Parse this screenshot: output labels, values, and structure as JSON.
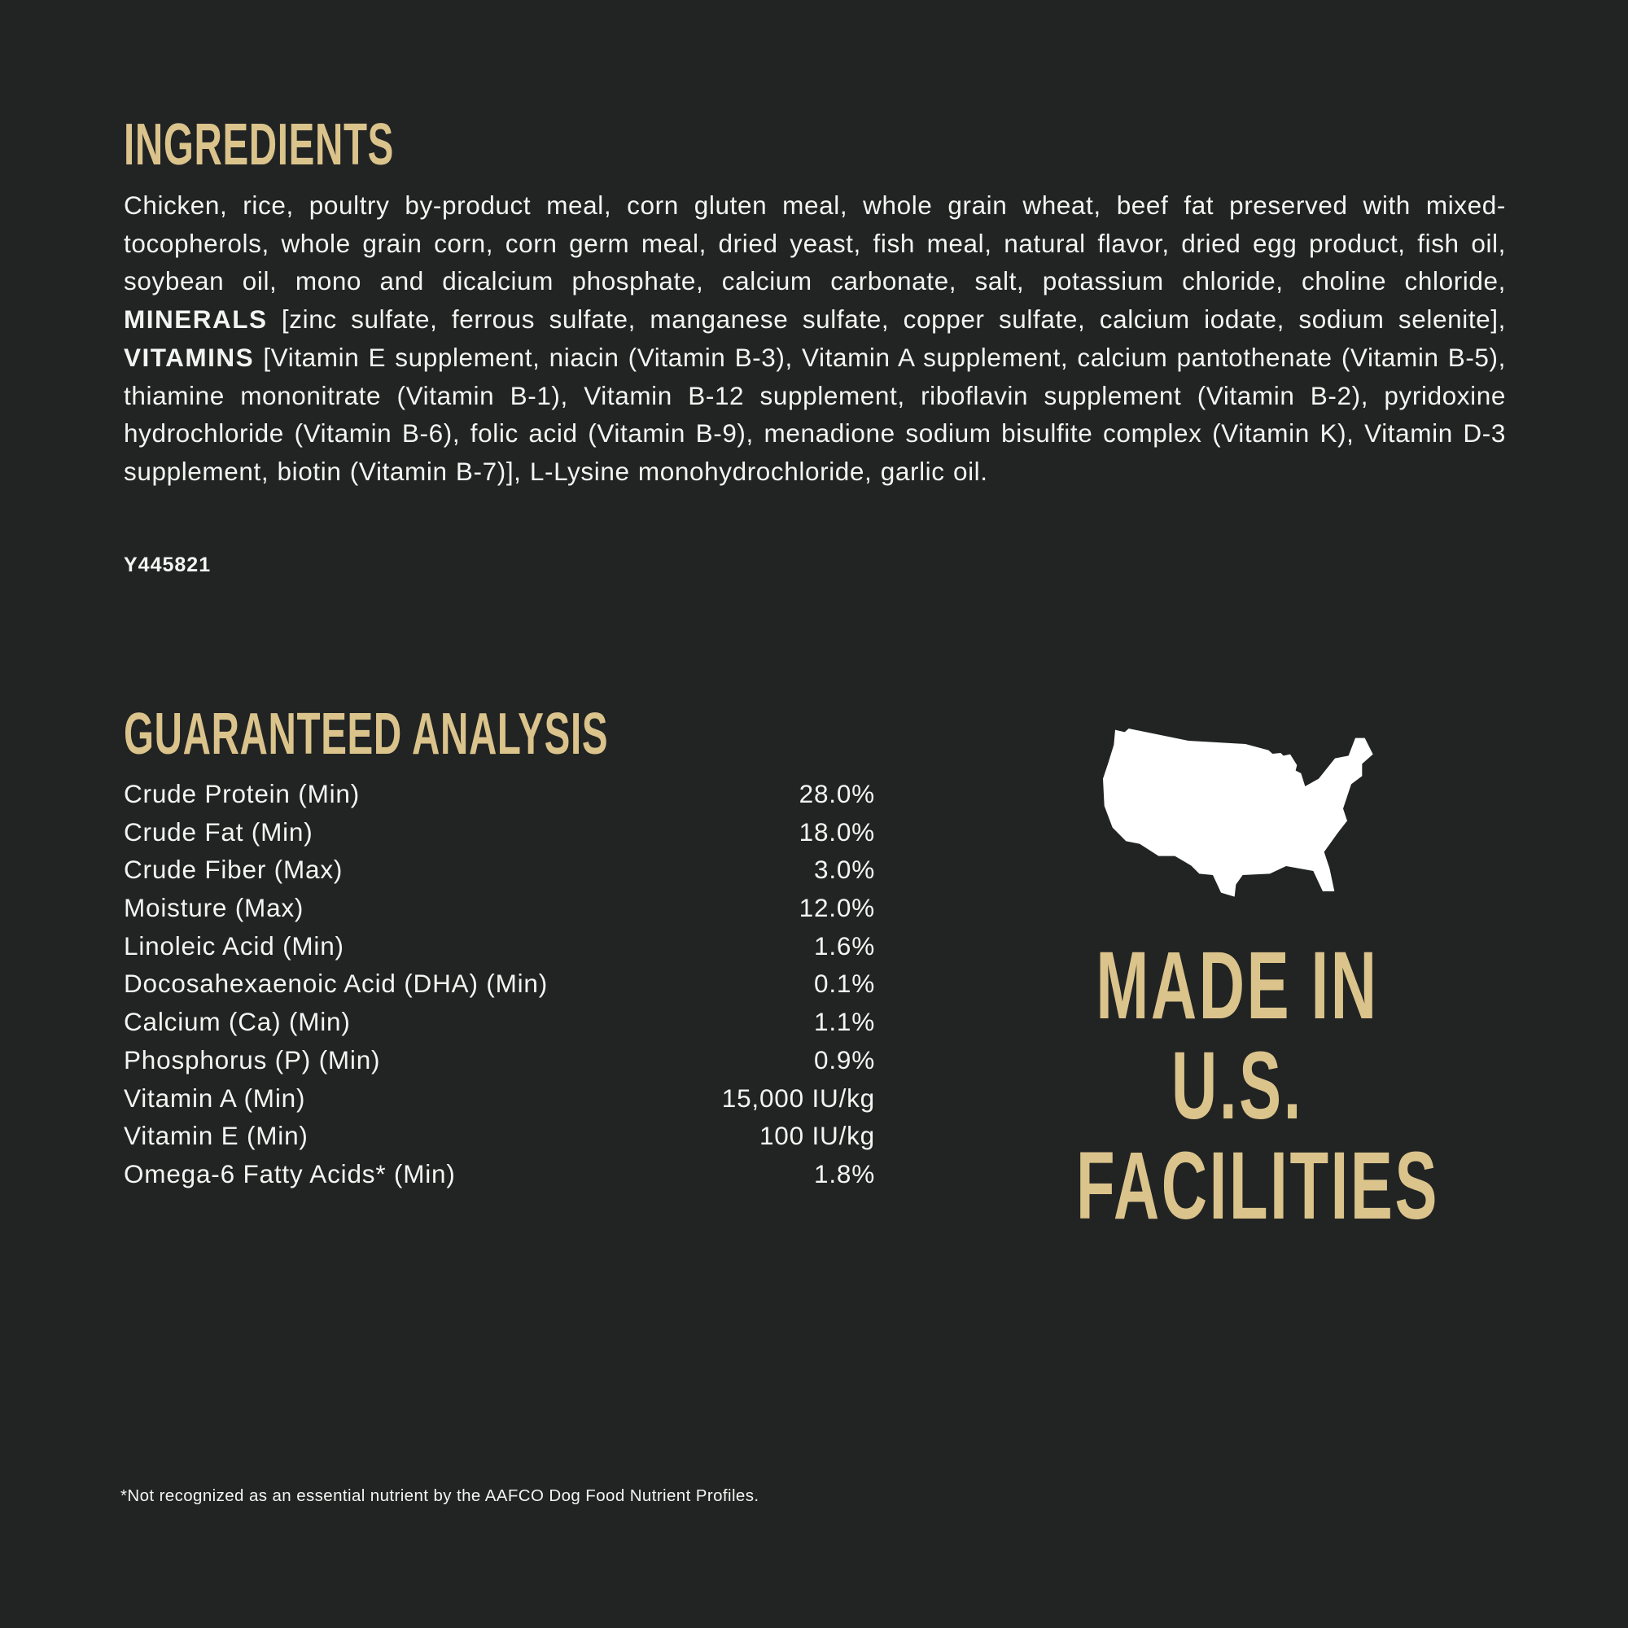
{
  "colors": {
    "background": "#212423",
    "accent_gold": "#dbc38c",
    "text": "#f4f4f2"
  },
  "ingredients": {
    "title": "INGREDIENTS",
    "segments": [
      {
        "text": "Chicken, rice, poultry by-product meal, corn gluten meal, whole grain wheat, beef fat preserved with mixed-tocopherols, whole grain corn, corn germ meal, dried yeast, fish meal, natural flavor, dried egg product, fish oil, soybean oil, mono and dicalcium phosphate, calcium carbonate, salt, potassium chloride, choline chloride, "
      },
      {
        "text": "MINERALS",
        "bold": true
      },
      {
        "text": " [zinc sulfate, ferrous sulfate, manganese sulfate, copper sulfate, calcium iodate, sodium selenite], "
      },
      {
        "text": "VITAMINS",
        "bold": true
      },
      {
        "text": " [Vitamin E supplement, niacin (Vitamin B-3), Vitamin A supplement, calcium pantothenate (Vitamin B-5), thiamine mononitrate (Vitamin B-1), Vitamin B-12 supplement, riboflavin supplement (Vitamin B-2), pyridoxine hydrochloride (Vitamin B-6), folic acid (Vitamin B-9), menadione sodium bisulfite complex (Vitamin K), Vitamin D-3 supplement, biotin (Vitamin B-7)], L-Lysine monohydrochloride, garlic oil."
      }
    ],
    "code": "Y445821"
  },
  "guaranteed_analysis": {
    "title": "GUARANTEED ANALYSIS",
    "rows": [
      {
        "label": "Crude Protein (Min)",
        "value": "28.0%"
      },
      {
        "label": "Crude Fat (Min)",
        "value": "18.0%"
      },
      {
        "label": "Crude Fiber (Max)",
        "value": "3.0%"
      },
      {
        "label": "Moisture (Max)",
        "value": "12.0%"
      },
      {
        "label": "Linoleic Acid (Min)",
        "value": "1.6%"
      },
      {
        "label": "Docosahexaenoic Acid (DHA) (Min)",
        "value": "0.1%"
      },
      {
        "label": "Calcium (Ca) (Min)",
        "value": "1.1%"
      },
      {
        "label": "Phosphorus (P) (Min)",
        "value": "0.9%"
      },
      {
        "label": "Vitamin A (Min)",
        "value": "15,000 IU/kg"
      },
      {
        "label": "Vitamin E (Min)",
        "value": "100 IU/kg"
      },
      {
        "label": "Omega-6 Fatty Acids* (Min)",
        "value": "1.8%"
      }
    ]
  },
  "made_in": {
    "icon": "usa-map-icon",
    "lines": [
      "MADE IN",
      "U.S.",
      "FACILITIES"
    ]
  },
  "footnote": "*Not recognized as an essential nutrient by the AAFCO Dog Food Nutrient Profiles."
}
